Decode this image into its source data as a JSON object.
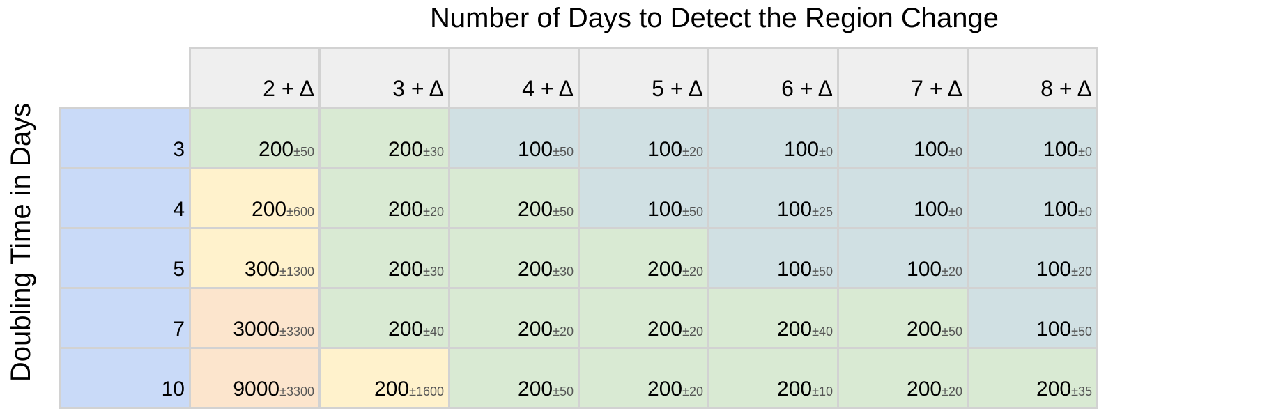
{
  "chart_data": {
    "type": "table",
    "title": "Number of Days to Detect the Region Change",
    "ylabel": "Doubling Time in Days",
    "columns": [
      "2 + Δ",
      "3 + Δ",
      "4 + Δ",
      "5 + Δ",
      "6 + Δ",
      "7 + Δ",
      "8 + Δ"
    ],
    "rows": [
      {
        "label": "3",
        "cells": [
          {
            "value": "200",
            "error": "±50",
            "color": "#d9ead3"
          },
          {
            "value": "200",
            "error": "±30",
            "color": "#d9ead3"
          },
          {
            "value": "100",
            "error": "±50",
            "color": "#d0e0e3"
          },
          {
            "value": "100",
            "error": "±20",
            "color": "#d0e0e3"
          },
          {
            "value": "100",
            "error": "±0",
            "color": "#d0e0e3"
          },
          {
            "value": "100",
            "error": "±0",
            "color": "#d0e0e3"
          },
          {
            "value": "100",
            "error": "±0",
            "color": "#d0e0e3"
          }
        ]
      },
      {
        "label": "4",
        "cells": [
          {
            "value": "200",
            "error": "±600",
            "color": "#fff2cc"
          },
          {
            "value": "200",
            "error": "±20",
            "color": "#d9ead3"
          },
          {
            "value": "200",
            "error": "±50",
            "color": "#d9ead3"
          },
          {
            "value": "100",
            "error": "±50",
            "color": "#d0e0e3"
          },
          {
            "value": "100",
            "error": "±25",
            "color": "#d0e0e3"
          },
          {
            "value": "100",
            "error": "±0",
            "color": "#d0e0e3"
          },
          {
            "value": "100",
            "error": "±0",
            "color": "#d0e0e3"
          }
        ]
      },
      {
        "label": "5",
        "cells": [
          {
            "value": "300",
            "error": "±1300",
            "color": "#fff2cc"
          },
          {
            "value": "200",
            "error": "±30",
            "color": "#d9ead3"
          },
          {
            "value": "200",
            "error": "±30",
            "color": "#d9ead3"
          },
          {
            "value": "200",
            "error": "±20",
            "color": "#d9ead3"
          },
          {
            "value": "100",
            "error": "±50",
            "color": "#d0e0e3"
          },
          {
            "value": "100",
            "error": "±20",
            "color": "#d0e0e3"
          },
          {
            "value": "100",
            "error": "±20",
            "color": "#d0e0e3"
          }
        ]
      },
      {
        "label": "7",
        "cells": [
          {
            "value": "3000",
            "error": "±3300",
            "color": "#fce5cd"
          },
          {
            "value": "200",
            "error": "±40",
            "color": "#d9ead3"
          },
          {
            "value": "200",
            "error": "±20",
            "color": "#d9ead3"
          },
          {
            "value": "200",
            "error": "±20",
            "color": "#d9ead3"
          },
          {
            "value": "200",
            "error": "±40",
            "color": "#d9ead3"
          },
          {
            "value": "200",
            "error": "±50",
            "color": "#d9ead3"
          },
          {
            "value": "100",
            "error": "±50",
            "color": "#d0e0e3"
          }
        ]
      },
      {
        "label": "10",
        "cells": [
          {
            "value": "9000",
            "error": "±3300",
            "color": "#fce5cd"
          },
          {
            "value": "200",
            "error": "±1600",
            "color": "#fff2cc"
          },
          {
            "value": "200",
            "error": "±50",
            "color": "#d9ead3"
          },
          {
            "value": "200",
            "error": "±20",
            "color": "#d9ead3"
          },
          {
            "value": "200",
            "error": "±10",
            "color": "#d9ead3"
          },
          {
            "value": "200",
            "error": "±20",
            "color": "#d9ead3"
          },
          {
            "value": "200",
            "error": "±35",
            "color": "#d9ead3"
          }
        ]
      }
    ]
  },
  "colors": {
    "row_header": "#c9daf8",
    "column_header": "#efefef",
    "grid_line": "#d2d2d2",
    "cell_green": "#d9ead3",
    "cell_bluegray": "#d0e0e3",
    "cell_yellow": "#fff2cc",
    "cell_orange": "#fce5cd"
  }
}
